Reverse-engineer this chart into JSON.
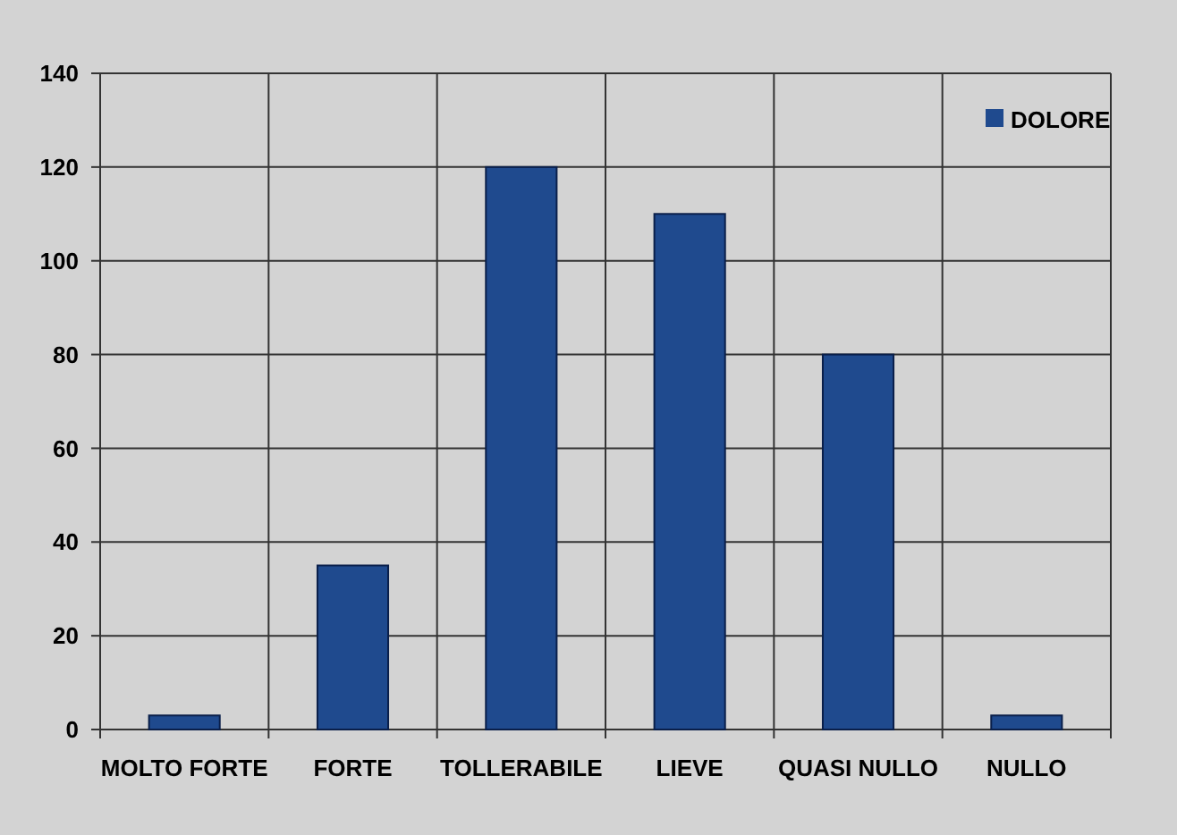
{
  "chart_data": {
    "type": "bar",
    "categories": [
      "MOLTO FORTE",
      "FORTE",
      "TOLLERABILE",
      "LIEVE",
      "QUASI NULLO",
      "NULLO"
    ],
    "series": [
      {
        "name": "DOLORE",
        "color": "#1f4a8e",
        "values": [
          3,
          35,
          120,
          110,
          80,
          3
        ]
      }
    ],
    "ylim": [
      0,
      140
    ],
    "yticks": [
      0,
      20,
      40,
      60,
      80,
      100,
      120,
      140
    ],
    "grid": true,
    "legend": "top right"
  }
}
